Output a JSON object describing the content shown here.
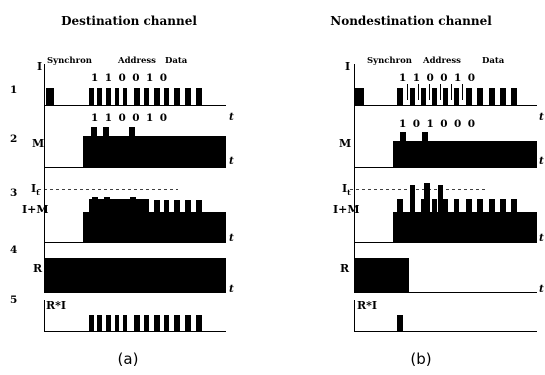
{
  "titles": {
    "left": "Destination channel",
    "right": "Nondestination channel"
  },
  "header": {
    "i_axis": "I",
    "synchron": "Synchron",
    "address": "Address",
    "data": "Data"
  },
  "row_numbers": [
    "1",
    "2",
    "3",
    "4",
    "5"
  ],
  "row_labels": {
    "m": "M",
    "it_main": "I",
    "it_sub": "t",
    "i_plus_m": "I+M",
    "r": "R",
    "r_times_i": "R*I"
  },
  "t_label": "t",
  "bits": {
    "left_row1": "1 1 0 0 1 0",
    "left_row2": "1 1 0 0 1 0",
    "right_row1": "1 1 0 0 1 0",
    "right_row2": "1 0 1 0 0 0"
  },
  "captions": {
    "a": "(a)",
    "b": "(b)"
  }
}
